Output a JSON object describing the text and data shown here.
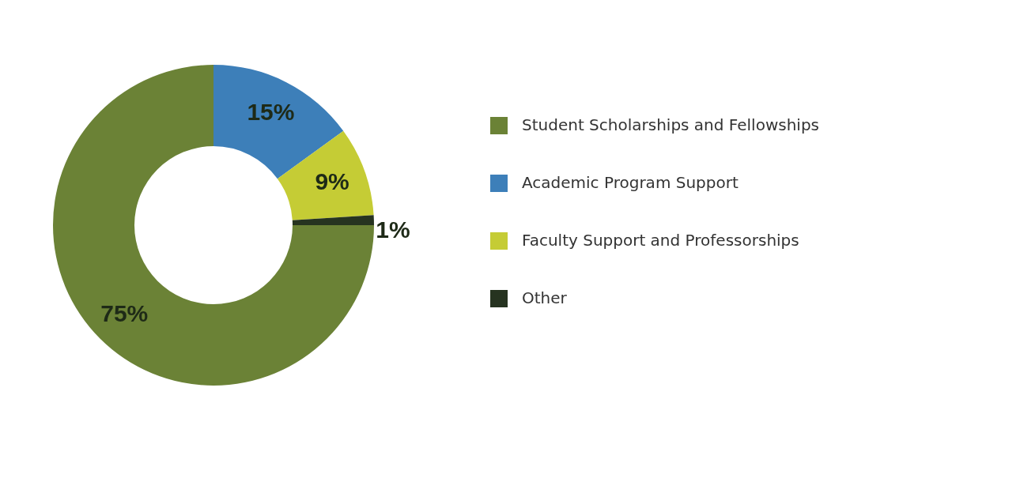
{
  "chart_data": {
    "type": "donut",
    "categories": [
      "Student Scholarships and Fellowships",
      "Academic Program Support",
      "Faculty Support and Professorships",
      "Other"
    ],
    "values": [
      75,
      15,
      9,
      1
    ],
    "colors": [
      "#6b8236",
      "#3d7fb9",
      "#c5cc35",
      "#263320"
    ],
    "value_labels": [
      "75%",
      "15%",
      "9%",
      "1%"
    ],
    "legend": "right"
  }
}
